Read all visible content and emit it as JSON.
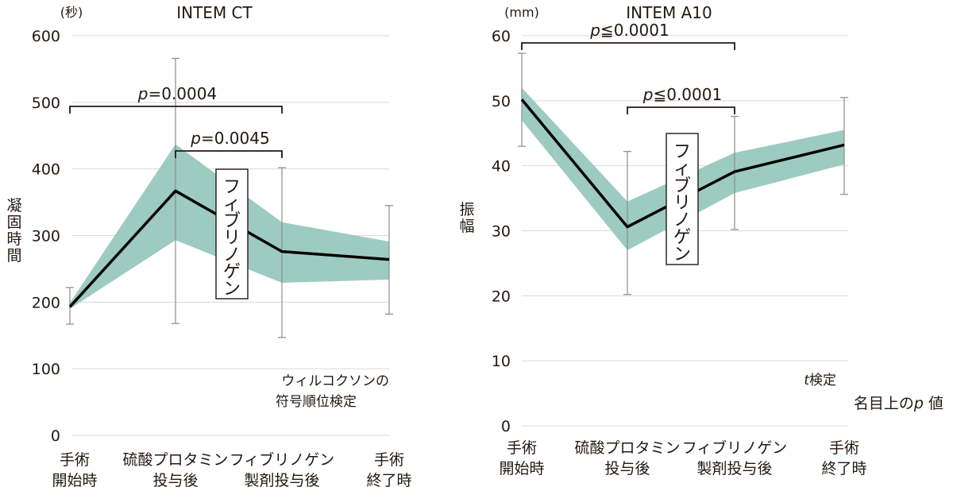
{
  "chart_data": [
    {
      "type": "line",
      "title": "INTEM CT",
      "unit": "(秒)",
      "ylabel": "凝固時間",
      "ylim": [
        0,
        600
      ],
      "yticks": [
        "0",
        "100",
        "200",
        "300",
        "400",
        "500",
        "600"
      ],
      "categories": [
        {
          "line1": "手術",
          "line2": "開始時"
        },
        {
          "line1": "硫酸プロタミン",
          "line2": "投与後"
        },
        {
          "line1": "フィブリノゲン",
          "line2": "製剤投与後"
        },
        {
          "line1": "手術",
          "line2": "終了時"
        }
      ],
      "series": [
        {
          "name": "mean",
          "values": [
            193,
            367,
            276,
            264
          ]
        },
        {
          "name": "band_low",
          "values": [
            190,
            293,
            229,
            234
          ]
        },
        {
          "name": "band_high",
          "values": [
            199,
            437,
            320,
            291
          ]
        },
        {
          "name": "err_low",
          "values": [
            167,
            168,
            147,
            182
          ]
        },
        {
          "name": "err_high",
          "values": [
            222,
            566,
            402,
            345
          ]
        }
      ],
      "comparisons": [
        {
          "from": 0,
          "to": 2,
          "label_prefix": "p",
          "label_rest": "=0.0004",
          "y": 494
        },
        {
          "from": 1,
          "to": 2,
          "label_prefix": "p",
          "label_rest": "=0.0045",
          "y": 427
        }
      ],
      "annotation": "フィブリノゲン",
      "test_note": {
        "line1": "ウィルコクソンの",
        "line2": "符号順位検定"
      }
    },
    {
      "type": "line",
      "title": "INTEM A10",
      "unit": "(mm)",
      "ylabel": "振幅",
      "ylim": [
        0,
        60
      ],
      "yticks": [
        "0",
        "10",
        "20",
        "30",
        "40",
        "50",
        "60"
      ],
      "categories": [
        {
          "line1": "手術",
          "line2": "開始時"
        },
        {
          "line1": "硫酸プロタミン",
          "line2": "投与後"
        },
        {
          "line1": "フィブリノゲン",
          "line2": "製剤投与後"
        },
        {
          "line1": "手術",
          "line2": "終了時"
        }
      ],
      "series": [
        {
          "name": "mean",
          "values": [
            50.2,
            30.6,
            39.1,
            43.2
          ]
        },
        {
          "name": "band_low",
          "values": [
            47.0,
            27.0,
            35.8,
            40.2
          ]
        },
        {
          "name": "band_high",
          "values": [
            52.0,
            34.5,
            42.0,
            45.5
          ]
        },
        {
          "name": "err_low",
          "values": [
            43.0,
            20.2,
            30.2,
            35.6
          ]
        },
        {
          "name": "err_high",
          "values": [
            57.3,
            42.2,
            47.6,
            50.5
          ]
        }
      ],
      "comparisons": [
        {
          "from": 0,
          "to": 2,
          "label_prefix": "p",
          "label_rest": "≦0.0001",
          "y": 58.9
        },
        {
          "from": 1,
          "to": 2,
          "label_prefix": "p",
          "label_rest": "≦0.0001",
          "y": 49.0
        }
      ],
      "annotation": "フィブリノゲン",
      "test_note": {
        "prefix": "t",
        "rest": "検定"
      }
    }
  ],
  "footnote": {
    "prefix": "名目上の",
    "italic": "p",
    "suffix": " 値"
  }
}
